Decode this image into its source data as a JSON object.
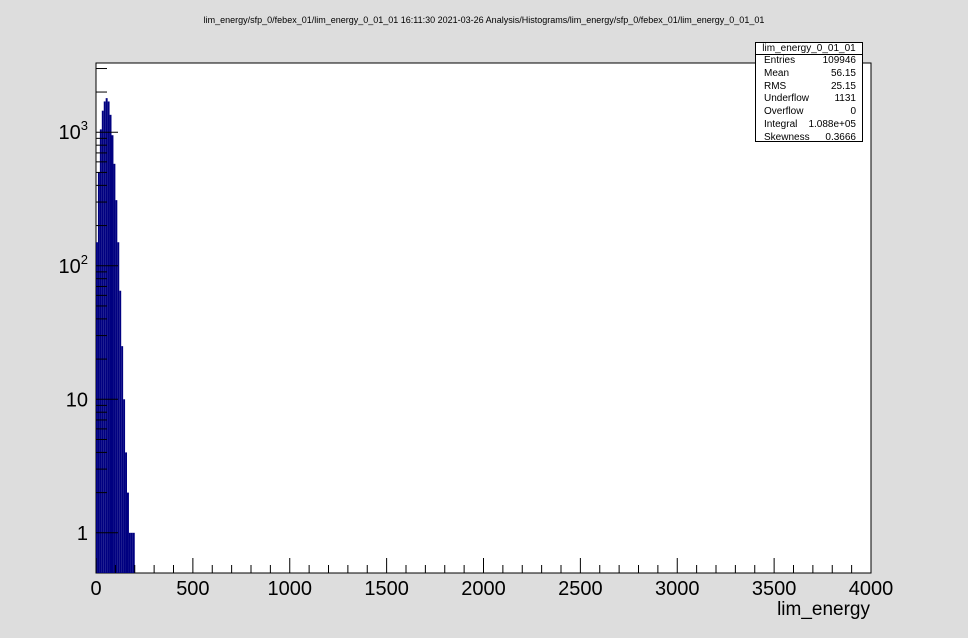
{
  "header": {
    "text": "lim_energy/sfp_0/febex_01/lim_energy_0_01_01  16:11:30  2021-03-26  Analysis/Histograms/lim_energy/sfp_0/febex_01/lim_energy_0_01_01"
  },
  "stats": {
    "title": "lim_energy_0_01_01",
    "rows": [
      {
        "label": "Entries",
        "value": "109946"
      },
      {
        "label": "Mean",
        "value": "56.15"
      },
      {
        "label": "RMS",
        "value": "25.15"
      },
      {
        "label": "Underflow",
        "value": "1131"
      },
      {
        "label": "Overflow",
        "value": "0"
      },
      {
        "label": "Integral",
        "value": "1.088e+05"
      },
      {
        "label": "Skewness",
        "value": "0.3666"
      }
    ]
  },
  "colors": {
    "histogram": "#000080",
    "background": "#dddddd",
    "frame": "#ffffff"
  },
  "chart_data": {
    "type": "bar",
    "xlabel": "lim_energy",
    "ylabel": "",
    "xlim": [
      0,
      4000
    ],
    "ylim": [
      0.5,
      3300
    ],
    "yscale": "log",
    "grid": false,
    "x_ticks": [
      0,
      500,
      1000,
      1500,
      2000,
      2500,
      3000,
      3500,
      4000
    ],
    "x_tick_labels": [
      "0",
      "500",
      "1000",
      "1500",
      "2000",
      "2500",
      "3000",
      "3500",
      "4000"
    ],
    "y_ticks": [
      1,
      10,
      100,
      1000
    ],
    "y_tick_labels": [
      {
        "base": "1",
        "exp": ""
      },
      {
        "base": "10",
        "exp": ""
      },
      {
        "base": "10",
        "exp": "2"
      },
      {
        "base": "10",
        "exp": "3"
      }
    ],
    "bin_width": 10,
    "bins": [
      {
        "x": 0,
        "y": 150
      },
      {
        "x": 10,
        "y": 500
      },
      {
        "x": 20,
        "y": 1050
      },
      {
        "x": 30,
        "y": 1450
      },
      {
        "x": 40,
        "y": 1700
      },
      {
        "x": 50,
        "y": 1800
      },
      {
        "x": 60,
        "y": 1700
      },
      {
        "x": 70,
        "y": 1350
      },
      {
        "x": 80,
        "y": 950
      },
      {
        "x": 90,
        "y": 580
      },
      {
        "x": 100,
        "y": 310
      },
      {
        "x": 110,
        "y": 150
      },
      {
        "x": 120,
        "y": 65
      },
      {
        "x": 130,
        "y": 25
      },
      {
        "x": 140,
        "y": 10
      },
      {
        "x": 150,
        "y": 4
      },
      {
        "x": 160,
        "y": 2
      },
      {
        "x": 170,
        "y": 1
      },
      {
        "x": 180,
        "y": 1
      },
      {
        "x": 190,
        "y": 1
      }
    ]
  }
}
